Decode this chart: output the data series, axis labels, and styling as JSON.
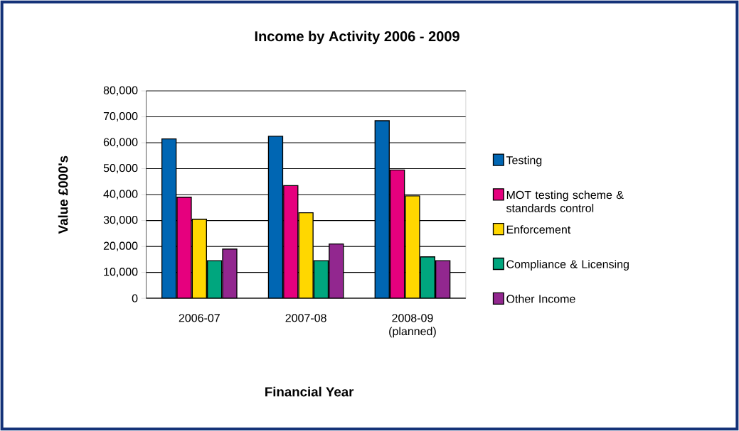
{
  "chart_data": {
    "type": "bar",
    "title": "Income by Activity 2006 - 2009",
    "xlabel": "Financial Year",
    "ylabel": "Value £000's",
    "categories": [
      "2006-07",
      "2007-08",
      "2008-09 (planned)"
    ],
    "series": [
      {
        "name": "Testing",
        "color": "#0066b3",
        "values": [
          61500,
          62500,
          68500
        ]
      },
      {
        "name": "MOT testing scheme & standards control",
        "color": "#e6007e",
        "values": [
          39000,
          43500,
          49500
        ]
      },
      {
        "name": "Enforcement",
        "color": "#ffd700",
        "values": [
          30500,
          33000,
          39500
        ]
      },
      {
        "name": "Compliance & Licensing",
        "color": "#00a67e",
        "values": [
          14500,
          14500,
          16000
        ]
      },
      {
        "name": "Other Income",
        "color": "#92278f",
        "values": [
          19000,
          21000,
          14500
        ]
      }
    ],
    "ylim": [
      0,
      80000
    ],
    "yticks": [
      {
        "value": 0,
        "label": "0"
      },
      {
        "value": 10000,
        "label": "10,000"
      },
      {
        "value": 20000,
        "label": "20,000"
      },
      {
        "value": 30000,
        "label": "30,000"
      },
      {
        "value": 40000,
        "label": "40,000"
      },
      {
        "value": 50000,
        "label": "50,000"
      },
      {
        "value": 60000,
        "label": "60,000"
      },
      {
        "value": 70000,
        "label": "70,000"
      },
      {
        "value": 80000,
        "label": "80,000"
      }
    ],
    "grid": "y",
    "legend": "right"
  }
}
